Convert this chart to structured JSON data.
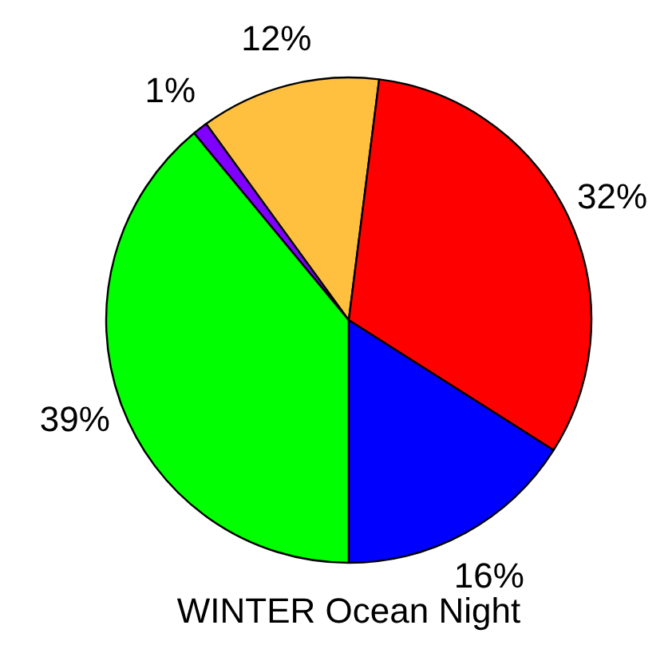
{
  "chart_data": {
    "type": "pie",
    "title": "WINTER Ocean Night",
    "categories": [
      null,
      null,
      null,
      null,
      null
    ],
    "values": [
      39,
      1,
      12,
      32,
      16
    ],
    "colors": [
      "#00ff00",
      "#7f00ff",
      "#ffc040",
      "#ff0000",
      "#0000ff"
    ],
    "value_labels": [
      "39%",
      "1%",
      "12%",
      "32%",
      "16%"
    ]
  }
}
